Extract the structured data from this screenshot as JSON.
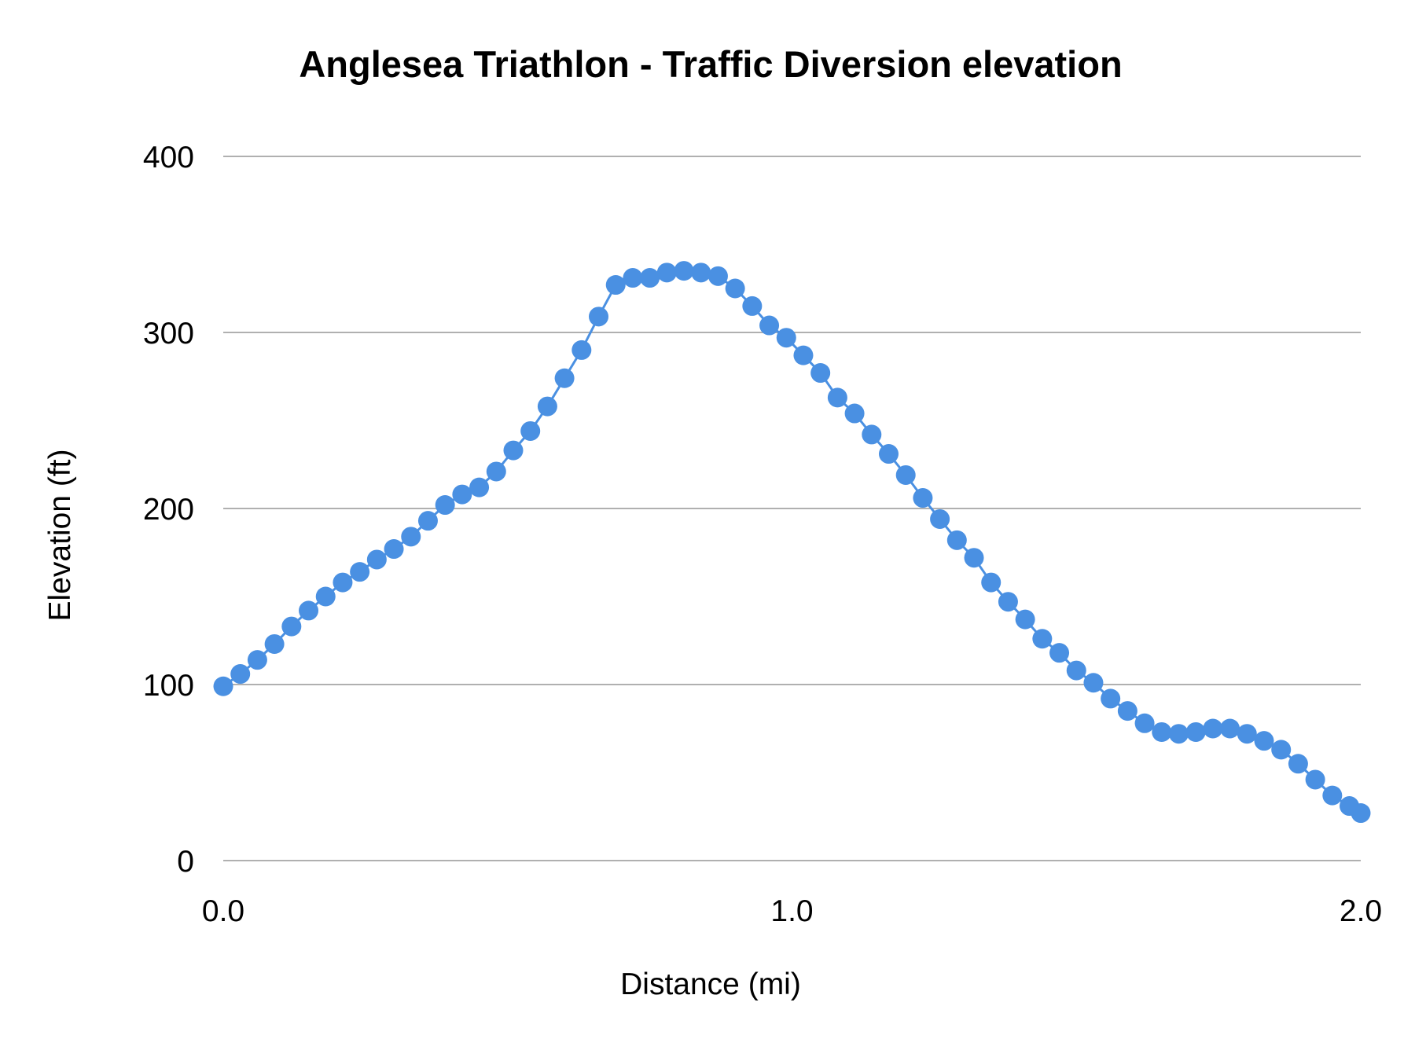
{
  "chart_data": {
    "type": "line",
    "title": "Anglesea Triathlon  - Traffic Diversion  elevation",
    "xlabel": "Distance (mi)",
    "ylabel": "Elevation (ft)",
    "xlim": [
      0,
      2
    ],
    "ylim": [
      0,
      400
    ],
    "x_ticks": [
      "0.0",
      "1.0",
      "2.0"
    ],
    "y_ticks": [
      "0",
      "100",
      "200",
      "300",
      "400"
    ],
    "grid": "horizontal",
    "legend": "none",
    "markers": true,
    "color": "#4a90e2",
    "x_range_note_free": true,
    "x": [
      0.0,
      0.03,
      0.06,
      0.09,
      0.12,
      0.15,
      0.18,
      0.21,
      0.24,
      0.27,
      0.3,
      0.33,
      0.36,
      0.39,
      0.42,
      0.45,
      0.48,
      0.51,
      0.54,
      0.57,
      0.6,
      0.63,
      0.66,
      0.69,
      0.72,
      0.75,
      0.78,
      0.81,
      0.84,
      0.87,
      0.9,
      0.93,
      0.96,
      0.99,
      1.02,
      1.05,
      1.08,
      1.11,
      1.14,
      1.17,
      1.2,
      1.23,
      1.26,
      1.29,
      1.32,
      1.35,
      1.38,
      1.41,
      1.44,
      1.47,
      1.5,
      1.53,
      1.56,
      1.59,
      1.62,
      1.65,
      1.68,
      1.71,
      1.74,
      1.77,
      1.8,
      1.83,
      1.86,
      1.89,
      1.92,
      1.95,
      1.98,
      2.0
    ],
    "values": [
      99,
      106,
      114,
      123,
      133,
      142,
      150,
      158,
      164,
      171,
      177,
      184,
      193,
      202,
      208,
      212,
      221,
      233,
      244,
      258,
      274,
      290,
      309,
      327,
      331,
      331,
      334,
      335,
      334,
      332,
      325,
      315,
      304,
      297,
      287,
      277,
      263,
      254,
      242,
      231,
      219,
      206,
      194,
      182,
      172,
      158,
      147,
      137,
      126,
      118,
      108,
      101,
      92,
      85,
      78,
      73,
      72,
      73,
      75,
      75,
      72,
      68,
      63,
      55,
      46,
      37,
      31,
      27
    ]
  }
}
